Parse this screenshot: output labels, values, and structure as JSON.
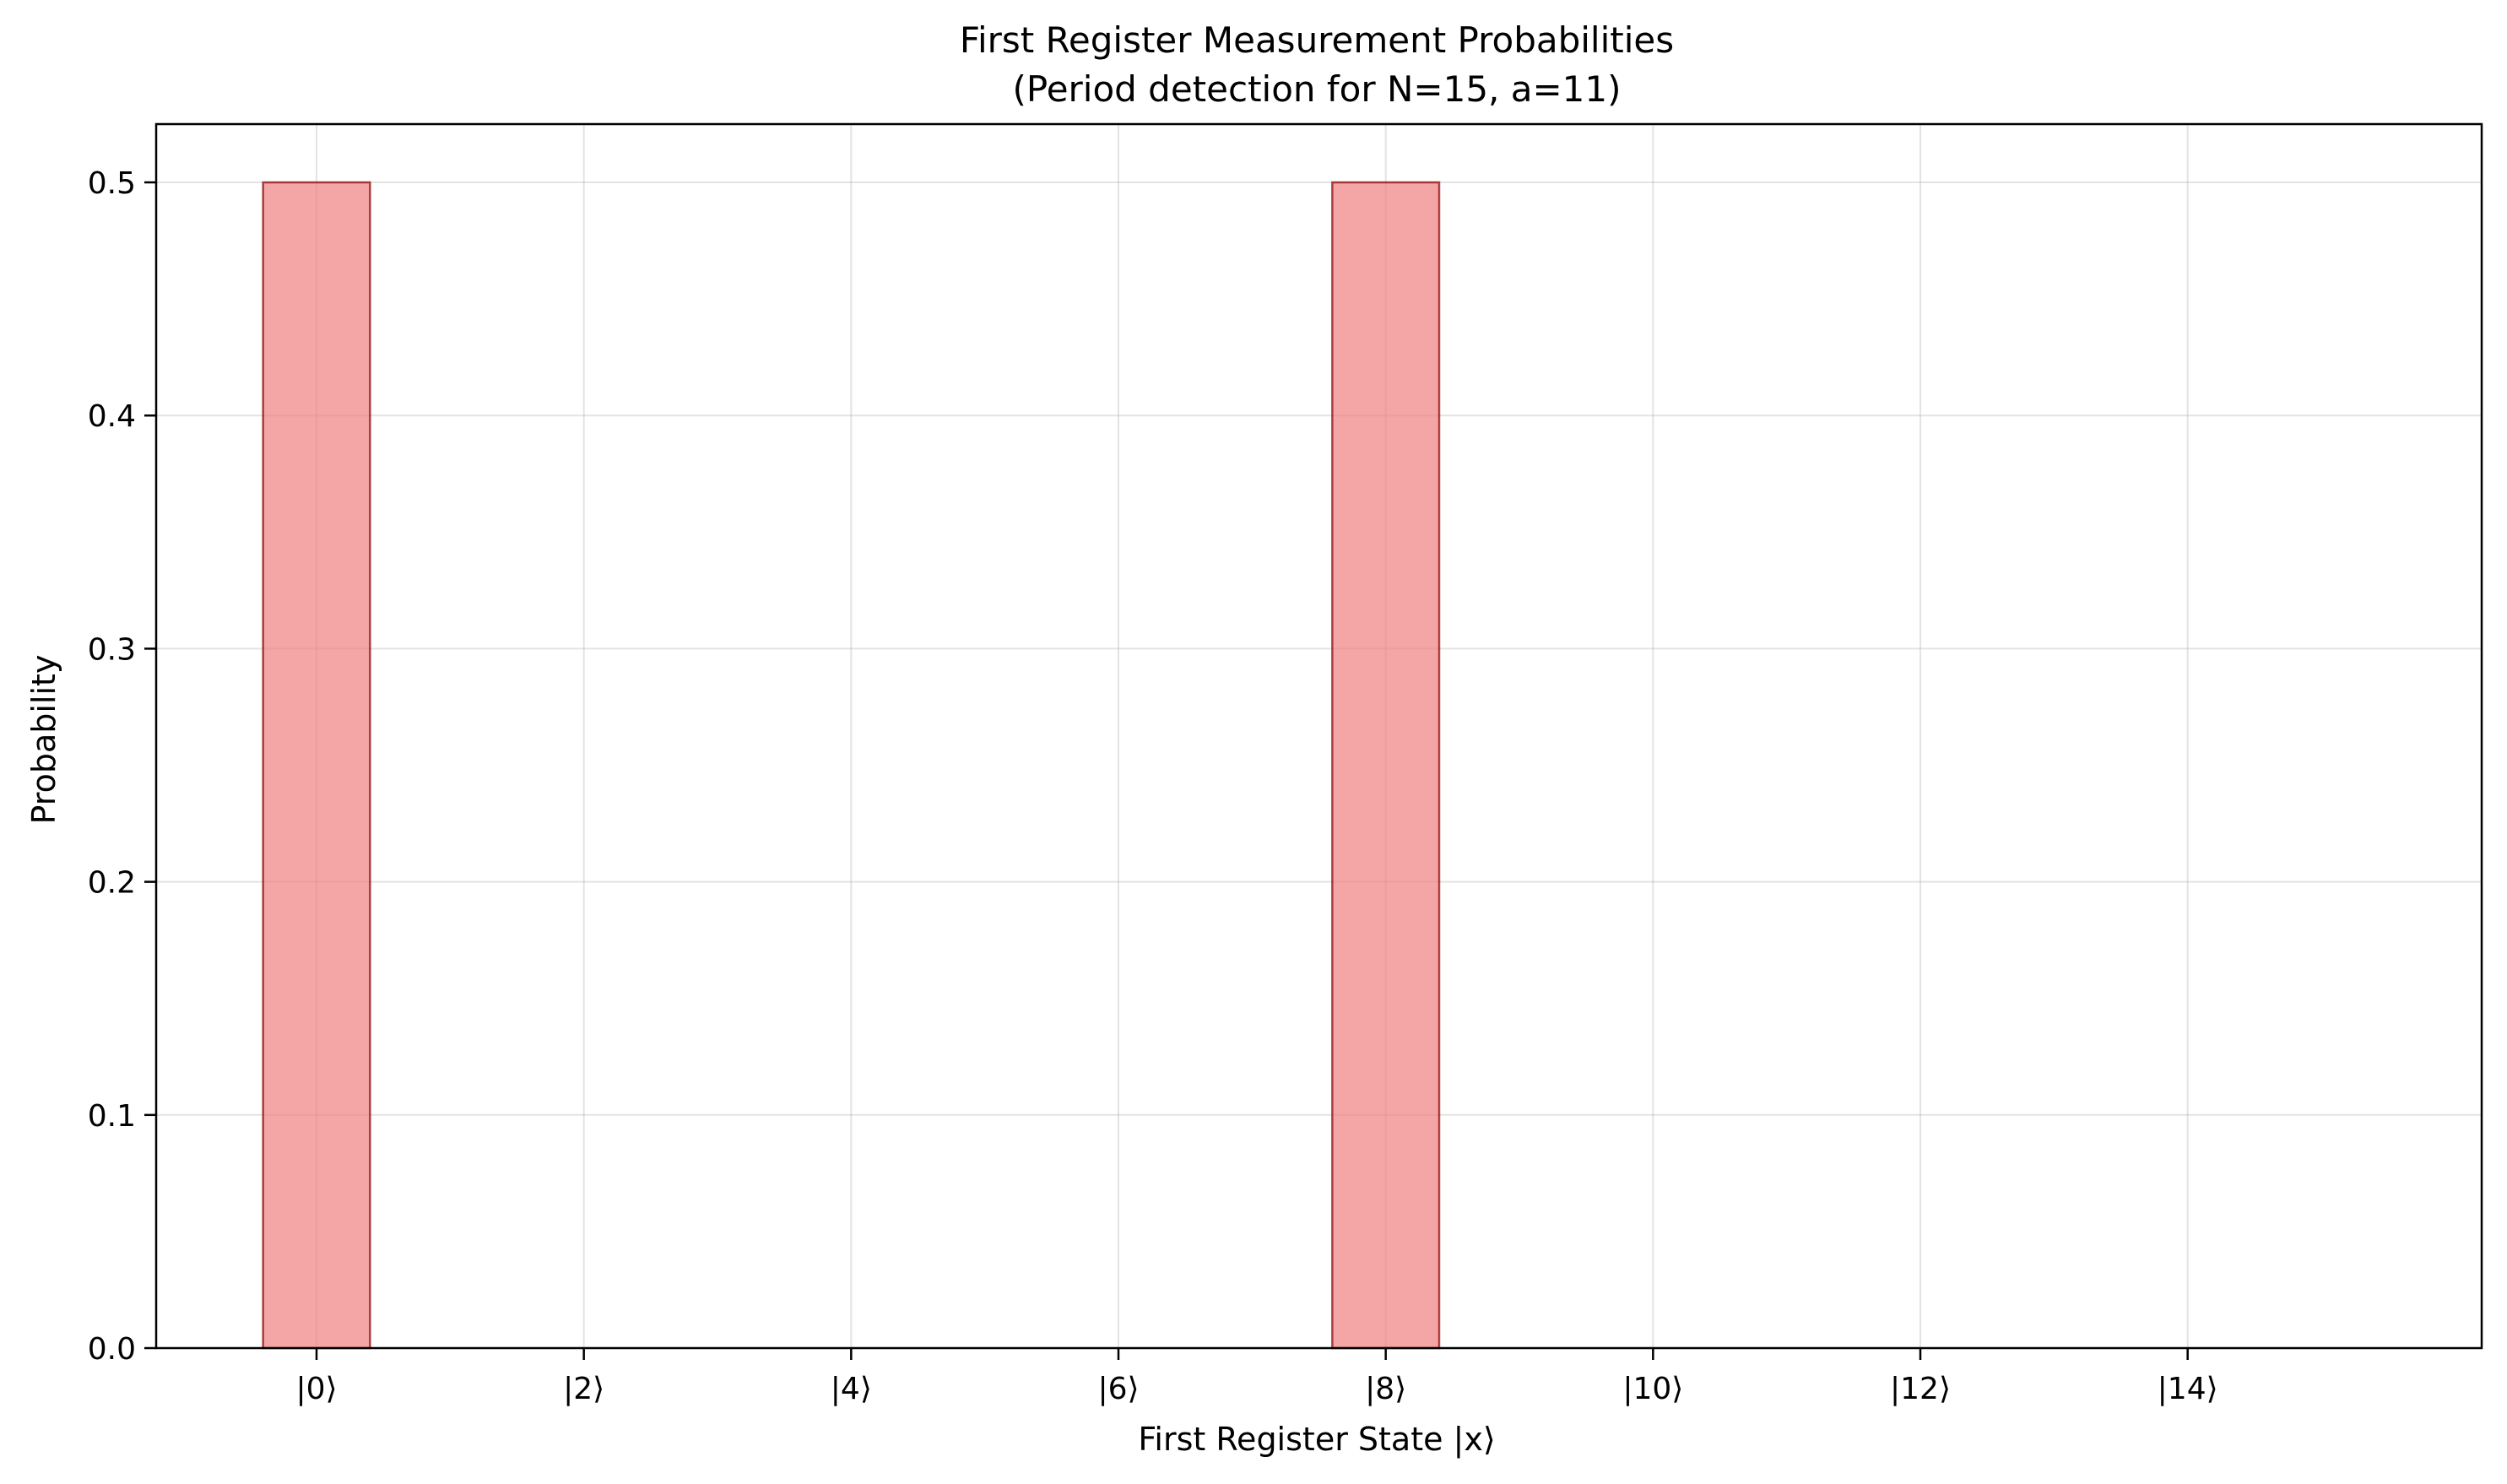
{
  "chart_data": {
    "type": "bar",
    "title": "First Register Measurement Probabilities",
    "subtitle": "(Period detection for N=15, a=11)",
    "xlabel": "First Register State |x⟩",
    "ylabel": "Probability",
    "x": [
      0,
      1,
      2,
      3,
      4,
      5,
      6,
      7,
      8,
      9,
      10,
      11,
      12,
      13,
      14,
      15
    ],
    "values": [
      0.5,
      0,
      0,
      0,
      0,
      0,
      0,
      0,
      0.5,
      0,
      0,
      0,
      0,
      0,
      0,
      0
    ],
    "xticks": [
      0,
      2,
      4,
      6,
      8,
      10,
      12,
      14
    ],
    "xtick_labels": [
      "|0⟩",
      "|2⟩",
      "|4⟩",
      "|6⟩",
      "|8⟩",
      "|10⟩",
      "|12⟩",
      "|14⟩"
    ],
    "yticks": [
      0.0,
      0.1,
      0.2,
      0.3,
      0.4,
      0.5
    ],
    "ytick_labels": [
      "0.0",
      "0.1",
      "0.2",
      "0.3",
      "0.4",
      "0.5"
    ],
    "xlim": [
      -1.2,
      16.2
    ],
    "ylim": [
      0,
      0.525
    ],
    "grid": true,
    "colors": {
      "bar_fill": "#f08080",
      "bar_edge": "#8b0000",
      "grid": "#b0b0b0"
    }
  }
}
